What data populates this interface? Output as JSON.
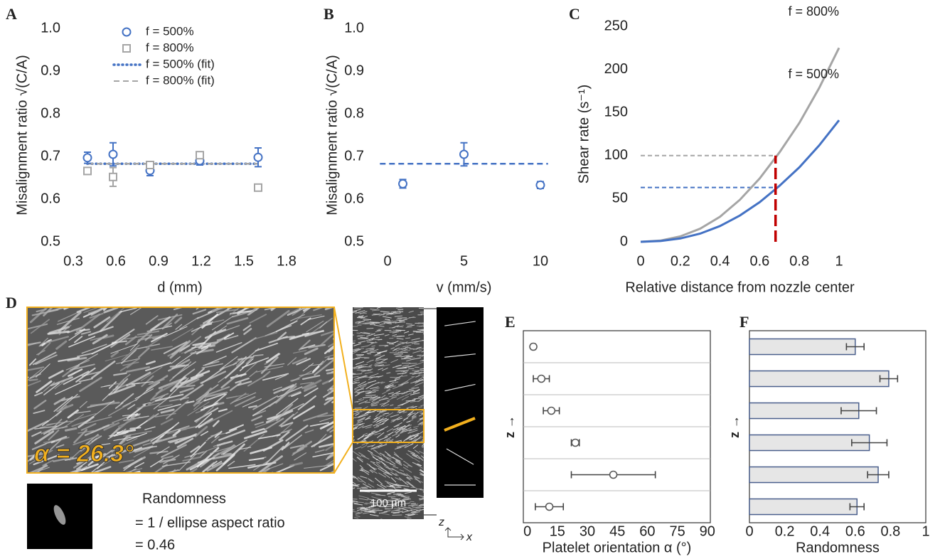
{
  "chart_data": [
    {
      "type": "scatter",
      "panel": "A",
      "x_label": "d (mm)",
      "y_label": "Misalignment ratio √(C/A)",
      "xlim": [
        0.3,
        1.8
      ],
      "xticks": [
        0.3,
        0.6,
        0.9,
        1.2,
        1.5,
        1.8
      ],
      "ylim": [
        0.5,
        1
      ],
      "yticks": [
        0.5,
        0.6,
        0.7,
        0.8,
        0.9,
        {
          "value": 1,
          "label": "1.0"
        }
      ],
      "legend": "upper center",
      "series": [
        {
          "name": "f = 500%",
          "color": "#4472c4",
          "marker": "circle",
          "x": [
            0.4,
            0.58,
            0.84,
            1.19,
            1.6
          ],
          "values": [
            0.697,
            0.705,
            0.667,
            0.69,
            0.698
          ],
          "errors": [
            0.013,
            0.027,
            0.012,
            0.01,
            0.022
          ]
        },
        {
          "name": "f = 800%",
          "color": "#a5a5a5",
          "marker": "square",
          "x": [
            0.4,
            0.58,
            0.84,
            1.19,
            1.6
          ],
          "values": [
            0.666,
            0.652,
            0.68,
            0.703,
            0.627
          ],
          "errors": [
            0.006,
            0.022,
            0.006,
            0.005,
            0.005
          ]
        },
        {
          "name": "f = 500% (fit)",
          "color": "#4472c4",
          "style": "dotted",
          "x": [
            0.4,
            1.6
          ],
          "values": [
            0.683,
            0.683
          ]
        },
        {
          "name": "f = 800% (fit)",
          "color": "#a5a5a5",
          "style": "dashed",
          "x": [
            0.4,
            1.6
          ],
          "values": [
            0.683,
            0.683
          ]
        }
      ]
    },
    {
      "type": "scatter",
      "panel": "B",
      "x_label": "v (mm/s)",
      "y_label": "Misalignment ratio √(C/A)",
      "xlim": [
        -0.7,
        10.7
      ],
      "xticks": [
        0,
        5,
        10
      ],
      "ylim": [
        0.5,
        1
      ],
      "yticks": [
        0.5,
        0.6,
        0.7,
        0.8,
        0.9,
        {
          "value": 1,
          "label": "1.0"
        }
      ],
      "series": [
        {
          "color": "#4472c4",
          "marker": "circle",
          "x": [
            1,
            5,
            10
          ],
          "values": [
            0.636,
            0.705,
            0.633
          ],
          "errors": [
            0.01,
            0.027,
            0.008
          ]
        },
        {
          "color": "#4472c4",
          "style": "dashed",
          "x": [
            -0.5,
            10.5
          ],
          "values": [
            0.683,
            0.683
          ]
        }
      ]
    },
    {
      "type": "line",
      "panel": "C",
      "x_label": "Relative distance from nozzle center",
      "y_label": "Shear rate (s⁻¹)",
      "xlim": [
        0,
        1
      ],
      "xticks": [
        0,
        0.2,
        0.4,
        0.6,
        0.8,
        1
      ],
      "ylim": [
        0,
        250
      ],
      "yticks": [
        0,
        50,
        100,
        150,
        200,
        250
      ],
      "x": [
        0,
        0.1,
        0.2,
        0.3,
        0.4,
        0.5,
        0.6,
        0.7,
        0.8,
        0.9,
        1
      ],
      "series": [
        {
          "name": "f = 800%",
          "color": "#a5a5a5",
          "values": [
            0,
            1.4,
            6.3,
            15.2,
            29.1,
            48.7,
            73.5,
            103.8,
            137.9,
            178.5,
            225
          ]
        },
        {
          "name": "f = 500%",
          "color": "#4472c4",
          "values": [
            0,
            0.9,
            3.9,
            9.5,
            18.3,
            30.5,
            46,
            65,
            86.4,
            111.9,
            141
          ]
        }
      ],
      "hlines": [
        {
          "y": 100,
          "x_end": 0.68,
          "color": "#a5a5a5"
        },
        {
          "y": 63,
          "x_end": 0.68,
          "color": "#4472c4"
        }
      ],
      "vline": {
        "x": 0.68,
        "y_end": 100,
        "color": "#c00000"
      }
    },
    {
      "type": "dot",
      "panel": "E",
      "x_label": "Platelet orientation α (°)",
      "y_label": "z →",
      "xlim": [
        -2,
        91.5
      ],
      "xticks": [
        0,
        15,
        30,
        45,
        60,
        75,
        90
      ],
      "categories": [
        null,
        null,
        null,
        null,
        null,
        null
      ],
      "values": [
        3,
        7,
        12,
        24,
        43,
        11
      ],
      "errors": [
        1,
        4,
        4,
        2,
        21,
        7
      ],
      "color": "#595959"
    },
    {
      "type": "bar",
      "orientation": "horizontal",
      "panel": "F",
      "x_label": "Randomness",
      "y_label": "z →",
      "xlim": [
        0,
        1
      ],
      "xticks": [
        0,
        0.2,
        0.4,
        0.6,
        0.8,
        1
      ],
      "categories": [
        null,
        null,
        null,
        null,
        null,
        null
      ],
      "values": [
        0.6,
        0.79,
        0.62,
        0.68,
        0.73,
        0.61
      ],
      "errors": [
        0.05,
        0.05,
        0.1,
        0.1,
        0.06,
        0.04
      ],
      "color": "#e6e6e6",
      "edge_color": "#4a5f8c"
    }
  ],
  "image_panel": {
    "panel": "D",
    "angle_label": "α = 26.3°",
    "randomness_title": "Randomness",
    "randomness_formula": "= 1 / ellipse aspect ratio",
    "randomness_value": "= 0.46",
    "scale_bar": "100 µm",
    "axis_z": "z",
    "axis_x": "x"
  }
}
